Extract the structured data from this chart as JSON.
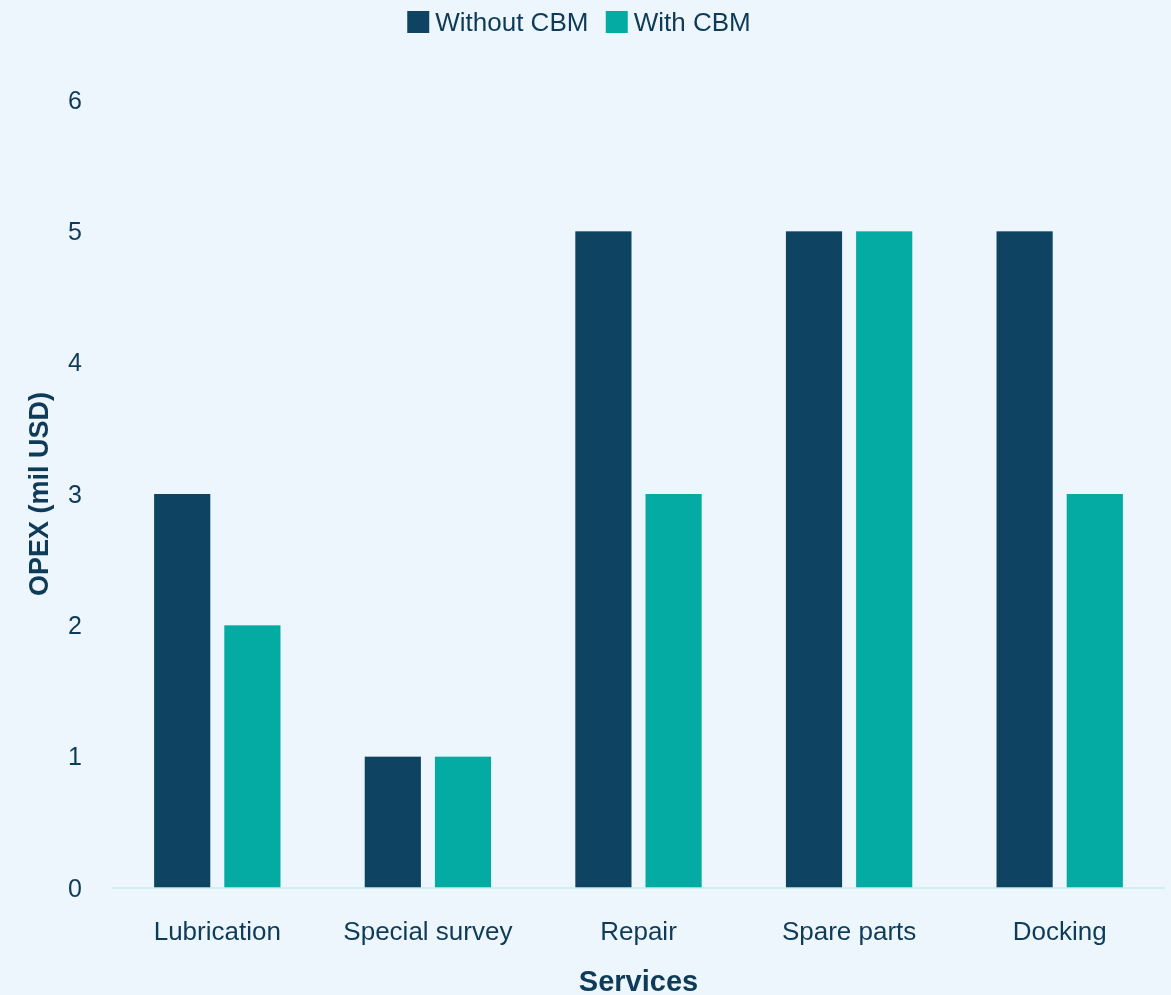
{
  "chart_data": {
    "type": "bar",
    "xlabel": "Services",
    "ylabel": "OPEX (mil USD)",
    "categories": [
      "Lubrication",
      "Special survey",
      "Repair",
      "Spare parts",
      "Docking"
    ],
    "series": [
      {
        "name": "Without CBM",
        "color": "#0e4461",
        "values": [
          3,
          1,
          5,
          5,
          5
        ]
      },
      {
        "name": "With CBM",
        "color": "#04aba2",
        "values": [
          2,
          1,
          3,
          5,
          3
        ]
      }
    ],
    "ylim": [
      0,
      6
    ],
    "yticks": [
      0,
      1,
      2,
      3,
      4,
      5,
      6
    ],
    "grid": false,
    "legend": "top"
  }
}
